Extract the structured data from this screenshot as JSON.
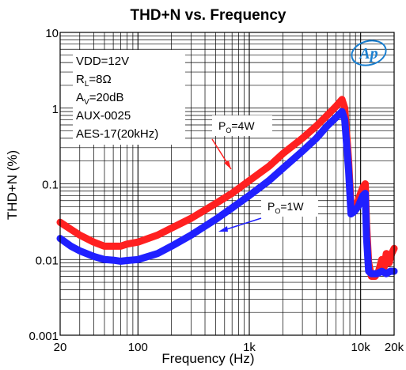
{
  "chart_data": {
    "type": "line",
    "title": "THD+N vs. Frequency",
    "xlabel": "Frequency (Hz)",
    "ylabel": "THD+N (%)",
    "x_scale": "log",
    "y_scale": "log",
    "xlim": [
      20,
      20000
    ],
    "ylim": [
      0.001,
      10
    ],
    "grid": true,
    "x_ticks": [
      {
        "value": 20,
        "label": "20"
      },
      {
        "value": 100,
        "label": "100"
      },
      {
        "value": 1000,
        "label": "1k"
      },
      {
        "value": 10000,
        "label": "10k"
      },
      {
        "value": 20000,
        "label": "20k"
      }
    ],
    "y_ticks": [
      {
        "value": 10,
        "label": "10"
      },
      {
        "value": 1,
        "label": "1"
      },
      {
        "value": 0.1,
        "label": "0.1"
      },
      {
        "value": 0.01,
        "label": "0.01"
      },
      {
        "value": 0.001,
        "label": "0.001"
      }
    ],
    "conditions": [
      "VDD=12V",
      "RL=8Ω",
      "AV=20dB",
      "AUX-0025",
      "AES-17(20kHz)"
    ],
    "logo_text": "Ap",
    "series": [
      {
        "name": "PO=4W",
        "color": "#ff2020",
        "points": [
          [
            20,
            0.031
          ],
          [
            25,
            0.025
          ],
          [
            30,
            0.021
          ],
          [
            40,
            0.017
          ],
          [
            50,
            0.015
          ],
          [
            60,
            0.015
          ],
          [
            70,
            0.015
          ],
          [
            80,
            0.016
          ],
          [
            100,
            0.017
          ],
          [
            150,
            0.021
          ],
          [
            200,
            0.026
          ],
          [
            300,
            0.035
          ],
          [
            500,
            0.055
          ],
          [
            700,
            0.075
          ],
          [
            1000,
            0.11
          ],
          [
            1500,
            0.17
          ],
          [
            2000,
            0.25
          ],
          [
            3000,
            0.4
          ],
          [
            4000,
            0.58
          ],
          [
            5000,
            0.8
          ],
          [
            6000,
            1.05
          ],
          [
            6800,
            1.3
          ],
          [
            7200,
            1.0
          ],
          [
            7800,
            0.2
          ],
          [
            8200,
            0.05
          ],
          [
            8600,
            0.045
          ],
          [
            9000,
            0.05
          ],
          [
            9500,
            0.06
          ],
          [
            10000,
            0.075
          ],
          [
            10500,
            0.09
          ],
          [
            11000,
            0.1
          ],
          [
            11300,
            0.03
          ],
          [
            11800,
            0.009
          ],
          [
            12500,
            0.006
          ],
          [
            13500,
            0.006
          ],
          [
            14500,
            0.007
          ],
          [
            15500,
            0.01
          ],
          [
            16300,
            0.008
          ],
          [
            17000,
            0.012
          ],
          [
            18000,
            0.009
          ],
          [
            19000,
            0.012
          ],
          [
            20000,
            0.014
          ]
        ]
      },
      {
        "name": "PO=1W",
        "color": "#2020ff",
        "points": [
          [
            20,
            0.019
          ],
          [
            25,
            0.015
          ],
          [
            30,
            0.013
          ],
          [
            40,
            0.011
          ],
          [
            50,
            0.01
          ],
          [
            60,
            0.0098
          ],
          [
            70,
            0.0095
          ],
          [
            80,
            0.0097
          ],
          [
            100,
            0.01
          ],
          [
            150,
            0.012
          ],
          [
            200,
            0.015
          ],
          [
            300,
            0.021
          ],
          [
            500,
            0.034
          ],
          [
            700,
            0.048
          ],
          [
            1000,
            0.07
          ],
          [
            1500,
            0.11
          ],
          [
            2000,
            0.16
          ],
          [
            3000,
            0.27
          ],
          [
            4000,
            0.4
          ],
          [
            5000,
            0.58
          ],
          [
            6000,
            0.75
          ],
          [
            6800,
            0.9
          ],
          [
            7200,
            0.7
          ],
          [
            7800,
            0.15
          ],
          [
            8200,
            0.04
          ],
          [
            8600,
            0.042
          ],
          [
            9000,
            0.045
          ],
          [
            9500,
            0.05
          ],
          [
            10000,
            0.06
          ],
          [
            10500,
            0.07
          ],
          [
            11000,
            0.075
          ],
          [
            11300,
            0.02
          ],
          [
            11800,
            0.007
          ],
          [
            12500,
            0.0065
          ],
          [
            14000,
            0.0065
          ],
          [
            15500,
            0.007
          ],
          [
            17000,
            0.0065
          ],
          [
            18500,
            0.007
          ],
          [
            20000,
            0.007
          ]
        ]
      }
    ],
    "annotations": [
      {
        "text": "PO=4W",
        "series": "PO=4W"
      },
      {
        "text": "PO=1W",
        "series": "PO=1W"
      }
    ]
  }
}
